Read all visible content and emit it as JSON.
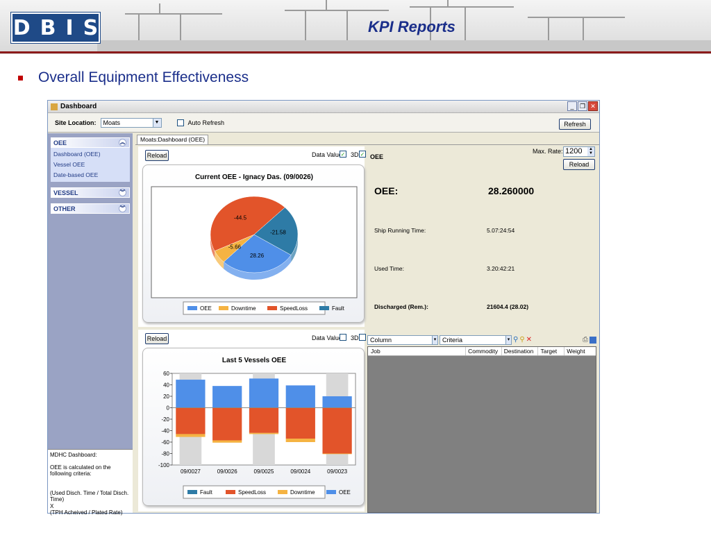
{
  "header": {
    "logo_letters": [
      "D",
      "B",
      "I",
      "S"
    ],
    "title": "KPI Reports"
  },
  "bullet": {
    "text": "Overall Equipment Effectiveness"
  },
  "window": {
    "title": "Dashboard",
    "site_label": "Site Location:",
    "site_value": "Moats",
    "auto_refresh_label": "Auto Refresh",
    "refresh_label": "Refresh",
    "tab": "Moats:Dashboard (OEE)"
  },
  "sidebar": {
    "groups": [
      {
        "label": "OEE",
        "items": [
          "Dashboard (OEE)",
          "Vessel OEE",
          "Date-based OEE"
        ]
      },
      {
        "label": "VESSEL"
      },
      {
        "label": "OTHER"
      }
    ],
    "description": [
      "MDHC Dashboard:",
      "OEE is calculated on the following criteria:",
      "(Used Disch. Time / Total Disch. Time)",
      "X",
      "(TPH Acheived / Plated Rate)"
    ]
  },
  "top_panel": {
    "reload": "Reload",
    "data_values": "Data Values",
    "d3": "3D",
    "data_values_checked": true,
    "d3_checked": true
  },
  "bottom_panel": {
    "reload": "Reload",
    "data_values": "Data Values",
    "d3": "3D",
    "data_values_checked": false,
    "d3_checked": false
  },
  "right_panel": {
    "heading": "OEE",
    "max_rate_label": "Max. Rate:",
    "max_rate_value": "1200",
    "reload": "Reload",
    "oee_label": "OEE:",
    "oee_value": "28.260000",
    "ship_running_label": "Ship Running Time:",
    "ship_running_value": "5.07:24:54",
    "used_time_label": "Used Time:",
    "used_time_value": "3.20:42:21",
    "discharged_label": "Discharged (Rem.):",
    "discharged_value": "21604.4 (28.02)"
  },
  "grid": {
    "column_label": "Column",
    "criteria_label": "Criteria",
    "headers": [
      "Job",
      "Commodity",
      "Destination",
      "Target",
      "Weight"
    ]
  },
  "colors": {
    "oee": "#4f8fe8",
    "downtime": "#f5b342",
    "speedloss": "#e2542a",
    "fault": "#2e7ba6"
  },
  "chart_data": [
    {
      "type": "pie",
      "title": "Current OEE - Ignacy Das. (09/0026)",
      "labels": [
        "OEE",
        "Downtime",
        "SpeedLoss",
        "Fault"
      ],
      "values": [
        28.26,
        5.66,
        44.5,
        21.58
      ],
      "data_labels": [
        "28.26",
        "5.66",
        "44.5",
        "21.58"
      ],
      "legend": "bottom"
    },
    {
      "type": "bar",
      "title": "Last 5 Vessels OEE",
      "categories": [
        "09/0027",
        "09/0026",
        "09/0025",
        "09/0024",
        "09/0023"
      ],
      "series": [
        {
          "name": "Fault",
          "values": [
            0,
            0,
            0,
            0,
            0
          ]
        },
        {
          "name": "SpeedLoss",
          "values": [
            -46,
            -57,
            -44,
            -54,
            -80
          ]
        },
        {
          "name": "Downtime",
          "values": [
            -5,
            -4,
            -2,
            -6,
            -1
          ]
        },
        {
          "name": "OEE",
          "values": [
            49,
            38,
            51,
            39,
            20
          ]
        }
      ],
      "ylim": [
        -100,
        60
      ],
      "yticks": [
        "60",
        "40",
        "20",
        "0",
        "-20",
        "-40",
        "-60",
        "-80",
        "-100"
      ],
      "legend": "bottom"
    }
  ]
}
